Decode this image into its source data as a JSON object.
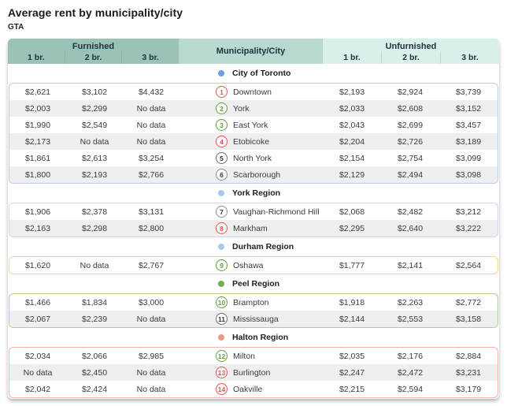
{
  "chart_data": {
    "type": "table",
    "title": "Average rent by municipality/city",
    "subtitle": "GTA",
    "column_groups": [
      "Furnished",
      "Municipality/City",
      "Unfurnished"
    ],
    "bedroom_columns": [
      "1 br.",
      "2 br.",
      "3 br."
    ],
    "no_data_text": "No data",
    "sections": [
      {
        "region": "City of Toronto",
        "marker_color": "#6d9ded",
        "border_color": "#b9cdf2",
        "rows": [
          {
            "index": "1",
            "badge_border": "#e4544a",
            "badge_text": "#e4544a",
            "name": "Downtown",
            "furnished": [
              "$2,621",
              "$3,102",
              "$4,432"
            ],
            "unfurnished": [
              "$2,193",
              "$2,924",
              "$3,739"
            ]
          },
          {
            "index": "2",
            "badge_border": "#5fa33c",
            "badge_text": "#5fa33c",
            "name": "York",
            "furnished": [
              "$2,003",
              "$2,299",
              "No data"
            ],
            "unfurnished": [
              "$2,033",
              "$2,608",
              "$3,152"
            ]
          },
          {
            "index": "3",
            "badge_border": "#5fa33c",
            "badge_text": "#5fa33c",
            "name": "East York",
            "furnished": [
              "$1,990",
              "$2,549",
              "No data"
            ],
            "unfurnished": [
              "$2,043",
              "$2,699",
              "$3,457"
            ]
          },
          {
            "index": "4",
            "badge_border": "#e4544a",
            "badge_text": "#e4544a",
            "name": "Etobicoke",
            "furnished": [
              "$2,173",
              "No data",
              "No data"
            ],
            "unfurnished": [
              "$2,204",
              "$2,726",
              "$3,189"
            ]
          },
          {
            "index": "5",
            "badge_border": "#6e6e6e",
            "badge_text": "#333333",
            "name": "North York",
            "furnished": [
              "$1,861",
              "$2,613",
              "$3,254"
            ],
            "unfurnished": [
              "$2,154",
              "$2,754",
              "$3,099"
            ]
          },
          {
            "index": "6",
            "badge_border": "#8c8c8c",
            "badge_text": "#333333",
            "name": "Scarborough",
            "furnished": [
              "$1,800",
              "$2,193",
              "$2,766"
            ],
            "unfurnished": [
              "$2,129",
              "$2,494",
              "$3,098"
            ]
          }
        ]
      },
      {
        "region": "York Region",
        "marker_color": "#abc7ef",
        "border_color": "#c9d8f1",
        "rows": [
          {
            "index": "7",
            "badge_border": "#8c8c8c",
            "badge_text": "#333333",
            "name": "Vaughan-Richmond Hill",
            "furnished": [
              "$1,906",
              "$2,378",
              "$3,131"
            ],
            "unfurnished": [
              "$2,068",
              "$2,482",
              "$3,212"
            ]
          },
          {
            "index": "8",
            "badge_border": "#e4544a",
            "badge_text": "#e4544a",
            "name": "Markham",
            "furnished": [
              "$2,163",
              "$2,298",
              "$2,800"
            ],
            "unfurnished": [
              "$2,295",
              "$2,640",
              "$3,222"
            ]
          }
        ]
      },
      {
        "region": "Durham Region",
        "marker_color": "#abc7ef",
        "border_color": "#f8da7c",
        "rows": [
          {
            "index": "9",
            "badge_border": "#5fa33c",
            "badge_text": "#5fa33c",
            "name": "Oshawa",
            "furnished": [
              "$1,620",
              "No data",
              "$2,767"
            ],
            "unfurnished": [
              "$1,777",
              "$2,141",
              "$2,564"
            ]
          }
        ]
      },
      {
        "region": "Peel Region",
        "marker_color": "#72ae52",
        "border_color": "#aad18d",
        "rows": [
          {
            "index": "10",
            "badge_border": "#5fa33c",
            "badge_text": "#5fa33c",
            "name": "Brampton",
            "furnished": [
              "$1,466",
              "$1,834",
              "$3,000"
            ],
            "unfurnished": [
              "$1,918",
              "$2,263",
              "$2,772"
            ]
          },
          {
            "index": "11",
            "badge_border": "#6e6e6e",
            "badge_text": "#333333",
            "name": "Mississauga",
            "furnished": [
              "$2,067",
              "$2,239",
              "No data"
            ],
            "unfurnished": [
              "$2,144",
              "$2,553",
              "$3,158"
            ]
          }
        ]
      },
      {
        "region": "Halton Region",
        "marker_color": "#f2968c",
        "border_color": "#f6b1a9",
        "rows": [
          {
            "index": "12",
            "badge_border": "#5fa33c",
            "badge_text": "#5fa33c",
            "name": "Milton",
            "furnished": [
              "$2,034",
              "$2,066",
              "$2,985"
            ],
            "unfurnished": [
              "$2,035",
              "$2,176",
              "$2,884"
            ]
          },
          {
            "index": "13",
            "badge_border": "#e4544a",
            "badge_text": "#e4544a",
            "name": "Burlington",
            "furnished": [
              "No data",
              "$2,450",
              "No data"
            ],
            "unfurnished": [
              "$2,247",
              "$2,472",
              "$3,231"
            ]
          },
          {
            "index": "14",
            "badge_border": "#e4544a",
            "badge_text": "#e4544a",
            "name": "Oakville",
            "furnished": [
              "$2,042",
              "$2,424",
              "No data"
            ],
            "unfurnished": [
              "$2,215",
              "$2,594",
              "$3,179"
            ]
          }
        ]
      }
    ]
  }
}
